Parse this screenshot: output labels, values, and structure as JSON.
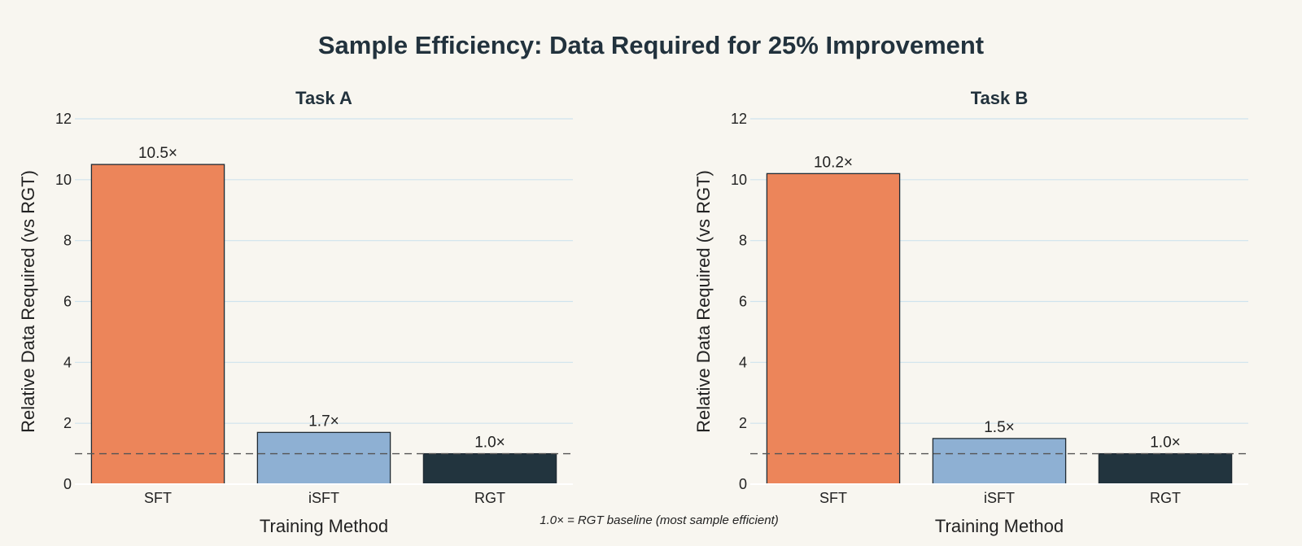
{
  "title": "Sample Efficiency: Data Required for 25% Improvement",
  "footnote": "1.0× = RGT baseline (most sample efficient)",
  "chart_data": [
    {
      "type": "bar",
      "title": "Task A",
      "xlabel": "Training Method",
      "ylabel": "Relative Data Required (vs RGT)",
      "categories": [
        "SFT",
        "iSFT",
        "RGT"
      ],
      "values": [
        10.5,
        1.7,
        1.0
      ],
      "data_labels": [
        "10.5×",
        "1.7×",
        "1.0×"
      ],
      "colors": [
        "#ec855a",
        "#8eb0d3",
        "#22343e"
      ],
      "ylim": [
        0,
        12
      ],
      "yticks": [
        0,
        2,
        4,
        6,
        8,
        10,
        12
      ],
      "reference_line": 1.0,
      "grid": true
    },
    {
      "type": "bar",
      "title": "Task B",
      "xlabel": "Training Method",
      "ylabel": "Relative Data Required (vs RGT)",
      "categories": [
        "SFT",
        "iSFT",
        "RGT"
      ],
      "values": [
        10.2,
        1.5,
        1.0
      ],
      "data_labels": [
        "10.2×",
        "1.5×",
        "1.0×"
      ],
      "colors": [
        "#ec855a",
        "#8eb0d3",
        "#22343e"
      ],
      "ylim": [
        0,
        12
      ],
      "yticks": [
        0,
        2,
        4,
        6,
        8,
        10,
        12
      ],
      "reference_line": 1.0,
      "grid": true
    }
  ]
}
